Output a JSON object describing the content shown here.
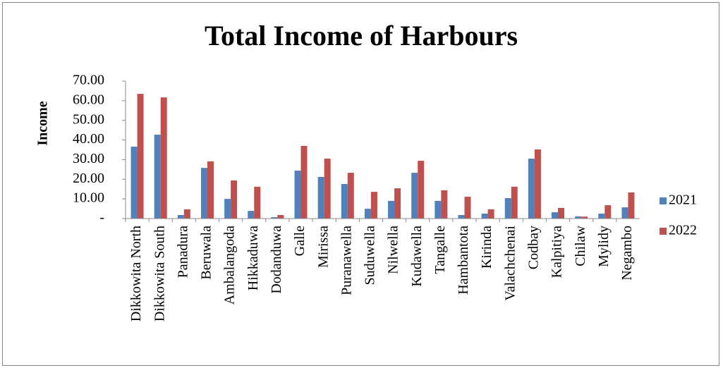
{
  "chart_data": {
    "type": "bar",
    "title": "Total Income of Harbours",
    "y_label": "Income",
    "categories": [
      "Dikkowita North",
      "Dikkowita South",
      "Panadura",
      "Beruwala",
      "Ambalangoda",
      "Hikkaduwa",
      "Dodanduwa",
      "Galle",
      "Mirissa",
      "Puranawella",
      "Suduwella",
      "Nilwella",
      "Kudawella",
      "Tangalle",
      "Hambantota",
      "Kirinda",
      "Valachchenai",
      "Codbay",
      "Kalpitiya",
      "Chilaw",
      "Mylidy",
      "Negambo"
    ],
    "series": [
      {
        "name": "2021",
        "color": "#4f81bd",
        "values": [
          36.6,
          42.7,
          1.8,
          25.8,
          10,
          3.9,
          0.7,
          24.4,
          21.2,
          17.6,
          5,
          9,
          23.3,
          9,
          1.8,
          2.5,
          10.4,
          30.5,
          3.2,
          1.1,
          2.5,
          5.7
        ]
      },
      {
        "name": "2022",
        "color": "#c0504d",
        "values": [
          63.5,
          61.7,
          4.7,
          29.1,
          19.4,
          16.2,
          1.8,
          37,
          30.5,
          23.3,
          13.6,
          15.4,
          29.4,
          14.4,
          11.1,
          4.7,
          16.2,
          35.2,
          5.4,
          1,
          6.8,
          13.3
        ]
      }
    ],
    "ylim": [
      0,
      70
    ],
    "yticks": [
      {
        "value": 0,
        "label": "-"
      },
      {
        "value": 10,
        "label": "10.00"
      },
      {
        "value": 20,
        "label": "20.00"
      },
      {
        "value": 30,
        "label": "30.00"
      },
      {
        "value": 40,
        "label": "40.00"
      },
      {
        "value": 50,
        "label": "50.00"
      },
      {
        "value": 60,
        "label": "60.00"
      },
      {
        "value": 70,
        "label": "70.00"
      }
    ],
    "grid": false,
    "legend": "right"
  }
}
